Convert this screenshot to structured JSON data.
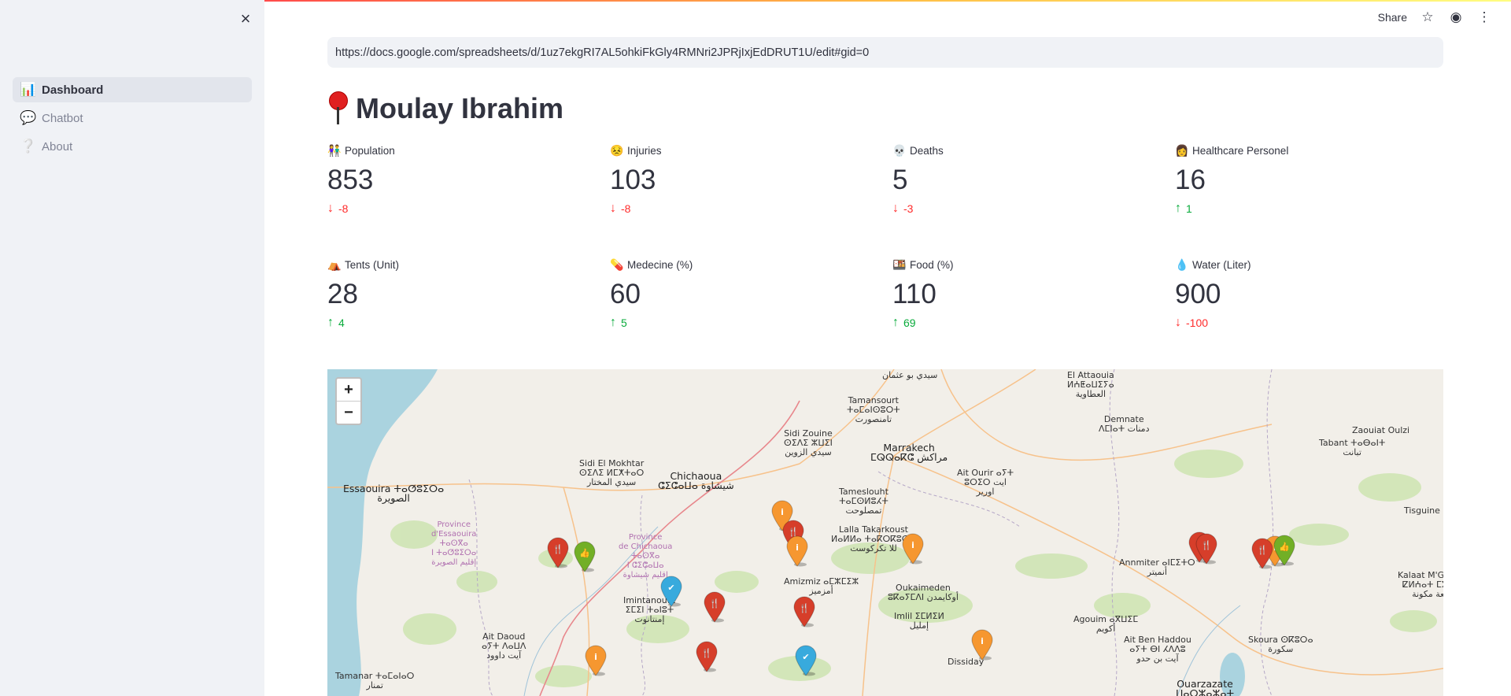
{
  "sidebar": {
    "close_label": "×",
    "items": [
      {
        "label": "Dashboard",
        "icon": "bar-chart-icon",
        "glyph": "📊",
        "active": true
      },
      {
        "label": "Chatbot",
        "icon": "speech-bubble-icon",
        "glyph": "💬",
        "active": false
      },
      {
        "label": "About",
        "icon": "question-mark-icon",
        "glyph": "❔",
        "active": false
      }
    ]
  },
  "header": {
    "share_label": "Share",
    "star_glyph": "☆",
    "github_glyph": "◉",
    "menu_glyph": "⋮"
  },
  "main": {
    "url": "https://docs.google.com/spreadsheets/d/1uz7ekgRI7AL5ohkiFkGly4RMNri2JPRjIxjEdDRUT1U/edit#gid=0",
    "title": "Moulay Ibrahim",
    "metrics": [
      {
        "label": "Population",
        "glyph": "👫",
        "value": "853",
        "delta": "-8",
        "direction": "down"
      },
      {
        "label": "Injuries",
        "glyph": "😣",
        "value": "103",
        "delta": "-8",
        "direction": "down"
      },
      {
        "label": "Deaths",
        "glyph": "💀",
        "value": "5",
        "delta": "-3",
        "direction": "down"
      },
      {
        "label": "Healthcare Personel",
        "glyph": "👩",
        "value": "16",
        "delta": "1",
        "direction": "up"
      },
      {
        "label": "Tents (Unit)",
        "glyph": "⛺",
        "value": "28",
        "delta": "4",
        "direction": "up"
      },
      {
        "label": "Medecine (%)",
        "glyph": "💊",
        "value": "60",
        "delta": "5",
        "direction": "up"
      },
      {
        "label": "Food (%)",
        "glyph": "🍱",
        "value": "110",
        "delta": "69",
        "direction": "up"
      },
      {
        "label": "Water (Liter)",
        "glyph": "💧",
        "value": "900",
        "delta": "-100",
        "direction": "down"
      }
    ]
  },
  "map": {
    "zoom_in": "+",
    "zoom_out": "−",
    "places": [
      {
        "text": "سيدي بو عثمان",
        "cls": "place"
      },
      {
        "text": "El Attaouia\nⵍⵄⵟⴰⵡⵉⵢⴰ\nالعطاوية",
        "cls": "place"
      },
      {
        "text": "Tamansourt\nⵜⴰⵎⴰⵏⵙⵓⵔⵜ\nتامنصورت",
        "cls": "place"
      },
      {
        "text": "Sidi Zouine\nⵙⵉⴷⵉ ⵣⵡⵉⵏ\nسيدي الزوين",
        "cls": "place"
      },
      {
        "text": "Marrakech\nⵎⵕⵕⴰⴽⵛ مراكش",
        "cls": "place big"
      },
      {
        "text": "Demnate\nⴷⵎⵏⴰⵜ دمنات",
        "cls": "place"
      },
      {
        "text": "Zaouiat Oulzi",
        "cls": "place"
      },
      {
        "text": "Tabant ⵜⴰⴱⴰⵏⵜ\nتبانت",
        "cls": "place"
      },
      {
        "text": "Sidi El Mokhtar\nⵙⵉⴷⵉ ⵍⵎⵅⵜⴰⵔ\nسيدي المختار",
        "cls": "place"
      },
      {
        "text": "Chichaoua\nⵛⵉⵛⴰⵡⴰ شيشاوة",
        "cls": "place big"
      },
      {
        "text": "Ait Ourir ⴰⵢⵜ\nⵓⵔⵉⵔ ايت\nاورير",
        "cls": "place"
      },
      {
        "text": "Essaouira ⵜⴰⵚⵓⵉⵔⴰ\nالصويرة",
        "cls": "place big"
      },
      {
        "text": "Tameslouht\nⵜⴰⵎⵙⵍⵓⵃⵜ\nتمصلوحت",
        "cls": "place"
      },
      {
        "text": "Tisguine",
        "cls": "place"
      },
      {
        "text": "Province\nd'Essaouira\nⵜⴰⵙⴳⴰ\nⵏ ⵜⴰⵚⵓⵉⵔⴰ\nإقليم الصويرة",
        "cls": "place prov"
      },
      {
        "text": "Province\nde Chichaoua\nⵜⴰⵙⴳⴰ\nⵏ ⵛⵉⵛⴰⵡⴰ\nإقليم شيشاوة",
        "cls": "place prov"
      },
      {
        "text": "Lalla Takarkoust\nⵍⴰⵍⵍⴰ ⵜⴰⴽⵔⴽⵓⵙⵜ\nللا تكركوست",
        "cls": "place"
      },
      {
        "text": "Annmiter ⴰⵏⵎⵉⵜⵔ\nأنميتر",
        "cls": "place"
      },
      {
        "text": "Kalaat M'Gouna\nⵇⵍⵄⴰⵜ ⵎⴳⵓⵏⴰ\nقلعة مكونة",
        "cls": "place"
      },
      {
        "text": "Amizmiz ⴰⵎⵣⵎⵉⵣ\nأمزميز",
        "cls": "place"
      },
      {
        "text": "Oukaimeden\nⵓⴽⴰⵢⵎⴷⵏ أوكايمدن",
        "cls": "place"
      },
      {
        "text": "Imintanoute\nⵉⵎⵉⵏ ⵜⴰⵏⵓⵜ\nإمنتانوت",
        "cls": "place"
      },
      {
        "text": "Imlil ⵉⵎⵍⵉⵍ\nإمليل",
        "cls": "place"
      },
      {
        "text": "Agouim ⴰⴳⵡⵉⵎ\nأكويم",
        "cls": "place"
      },
      {
        "text": "Ait Daoud\nⴰⵢⵜ ⴷⴰⵡⴷ\nآيت داوود",
        "cls": "place"
      },
      {
        "text": "Ait Ben Haddou\nⴰⵢⵜ ⴱⵏ ⵃⴷⴷⵓ\nآيت بن حدو",
        "cls": "place"
      },
      {
        "text": "Skoura ⵙⴽⵓⵔⴰ\nسكورة",
        "cls": "place"
      },
      {
        "text": "Dissiday",
        "cls": "place"
      },
      {
        "text": "Tamanar ⵜⴰⵎⴰⵏⴰⵔ\nتمنار",
        "cls": "place"
      },
      {
        "text": "Ouarzazate\nⵡⴰⵔⵣⴰⵣⴰⵜ",
        "cls": "place big"
      }
    ],
    "markers": [
      {
        "kind": "orange",
        "icon": "info-icon"
      },
      {
        "kind": "red",
        "icon": "cutlery-icon"
      },
      {
        "kind": "orange",
        "icon": "info-icon"
      },
      {
        "kind": "orange",
        "icon": "info-icon"
      },
      {
        "kind": "red",
        "icon": "cutlery-icon"
      },
      {
        "kind": "green",
        "icon": "thumbs-up-icon"
      },
      {
        "kind": "blue",
        "icon": "check-icon"
      },
      {
        "kind": "red",
        "icon": "cutlery-icon"
      },
      {
        "kind": "red",
        "icon": "cutlery-icon"
      },
      {
        "kind": "orange",
        "icon": "info-icon"
      },
      {
        "kind": "red",
        "icon": "cutlery-icon"
      },
      {
        "kind": "red",
        "icon": "cutlery-icon"
      },
      {
        "kind": "red",
        "icon": "cutlery-icon"
      },
      {
        "kind": "green",
        "icon": "thumbs-up-icon"
      },
      {
        "kind": "orange",
        "icon": "info-icon"
      },
      {
        "kind": "red",
        "icon": "cutlery-icon"
      },
      {
        "kind": "blue",
        "icon": "check-icon"
      },
      {
        "kind": "orange",
        "icon": "info-icon"
      }
    ]
  },
  "colors": {
    "red": "#d63e2a",
    "orange": "#f69730",
    "green": "#72af26",
    "blue": "#38aadd",
    "delta_down": "#ff2b2b",
    "delta_up": "#09ab3b"
  }
}
